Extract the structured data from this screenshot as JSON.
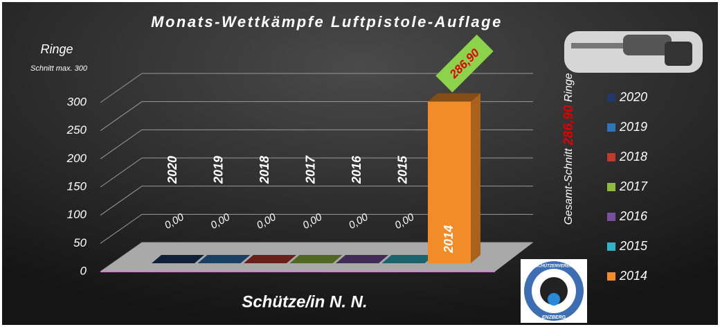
{
  "chart_data": {
    "type": "bar3d",
    "title": "Monats-Wettkämpfe Luftpistole-Auflage",
    "y_label": "Ringe",
    "y_sublabel": "Schnitt max. 300",
    "x_label": "Schütze/in N. N.",
    "annotation": [
      "Gesamt-Schnitt ",
      "286,90",
      " Ringe"
    ],
    "logo_text": [
      "K.K. SCHÜTZENVEREIN E.V.",
      "ENZBERG"
    ],
    "ylim": [
      0,
      300
    ],
    "yticks": [
      0,
      50,
      100,
      150,
      200,
      250,
      300
    ],
    "grid": true,
    "legend": "right",
    "series": [
      {
        "name": "2020",
        "color": "#1f3a68",
        "values": [
          0
        ],
        "value_labels": [
          "0,00"
        ]
      },
      {
        "name": "2019",
        "color": "#2e75b6",
        "values": [
          0
        ],
        "value_labels": [
          "0,00"
        ]
      },
      {
        "name": "2018",
        "color": "#c0392b",
        "values": [
          0
        ],
        "value_labels": [
          "0,00"
        ]
      },
      {
        "name": "2017",
        "color": "#8fbc3b",
        "values": [
          0
        ],
        "value_labels": [
          "0,00"
        ]
      },
      {
        "name": "2016",
        "color": "#7a4fa0",
        "values": [
          0
        ],
        "value_labels": [
          "0,00"
        ]
      },
      {
        "name": "2015",
        "color": "#2fb5c8",
        "values": [
          0
        ],
        "value_labels": [
          "0,00"
        ]
      },
      {
        "name": "2014",
        "color": "#f28c28",
        "values": [
          286.9
        ],
        "value_labels": [
          "286,90"
        ]
      }
    ]
  }
}
